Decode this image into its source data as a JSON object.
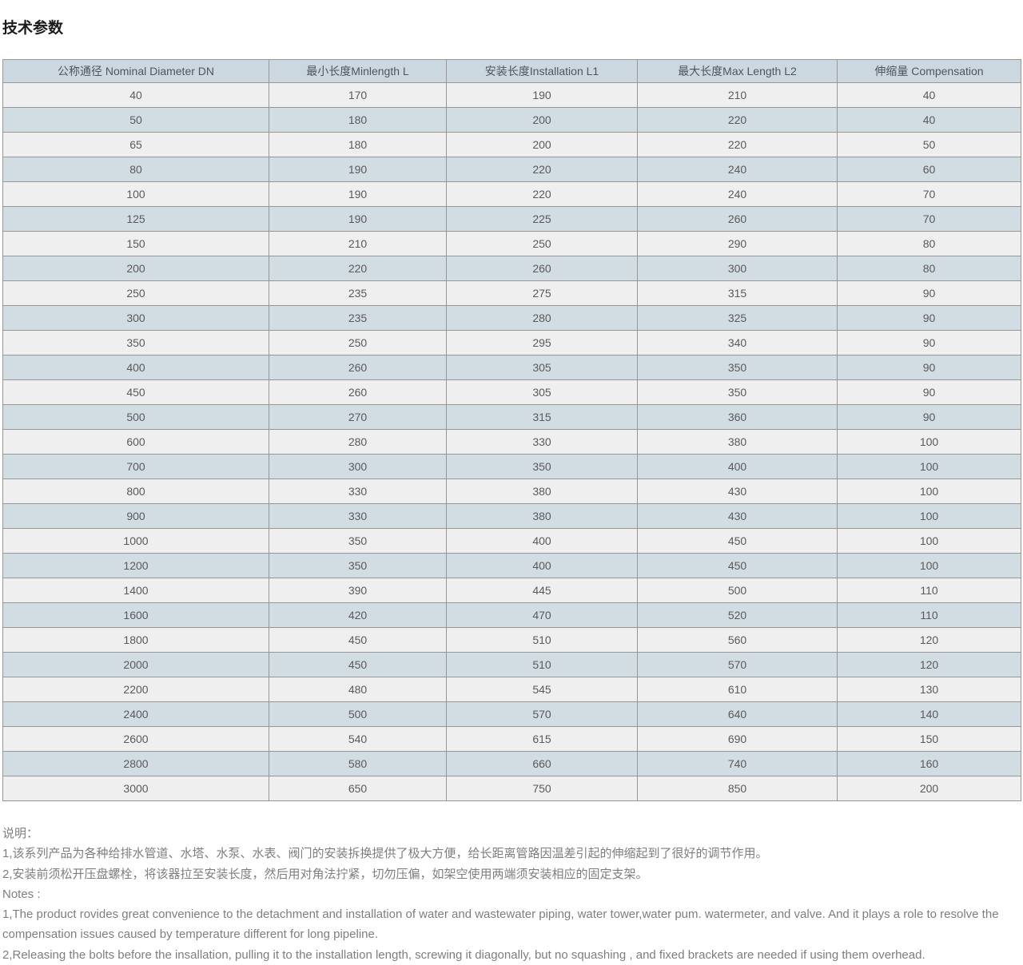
{
  "page": {
    "title": "技术参数"
  },
  "table": {
    "headers": [
      "公称通径 Nominal Diameter DN",
      "最小长度Minlength L",
      "安装长度Installation L1",
      "最大长度Max Length L2",
      "伸缩量 Compensation"
    ],
    "rows": [
      [
        "40",
        "170",
        "190",
        "210",
        "40"
      ],
      [
        "50",
        "180",
        "200",
        "220",
        "40"
      ],
      [
        "65",
        "180",
        "200",
        "220",
        "50"
      ],
      [
        "80",
        "190",
        "220",
        "240",
        "60"
      ],
      [
        "100",
        "190",
        "220",
        "240",
        "70"
      ],
      [
        "125",
        "190",
        "225",
        "260",
        "70"
      ],
      [
        "150",
        "210",
        "250",
        "290",
        "80"
      ],
      [
        "200",
        "220",
        "260",
        "300",
        "80"
      ],
      [
        "250",
        "235",
        "275",
        "315",
        "90"
      ],
      [
        "300",
        "235",
        "280",
        "325",
        "90"
      ],
      [
        "350",
        "250",
        "295",
        "340",
        "90"
      ],
      [
        "400",
        "260",
        "305",
        "350",
        "90"
      ],
      [
        "450",
        "260",
        "305",
        "350",
        "90"
      ],
      [
        "500",
        "270",
        "315",
        "360",
        "90"
      ],
      [
        "600",
        "280",
        "330",
        "380",
        "100"
      ],
      [
        "700",
        "300",
        "350",
        "400",
        "100"
      ],
      [
        "800",
        "330",
        "380",
        "430",
        "100"
      ],
      [
        "900",
        "330",
        "380",
        "430",
        "100"
      ],
      [
        "1000",
        "350",
        "400",
        "450",
        "100"
      ],
      [
        "1200",
        "350",
        "400",
        "450",
        "100"
      ],
      [
        "1400",
        "390",
        "445",
        "500",
        "110"
      ],
      [
        "1600",
        "420",
        "470",
        "520",
        "110"
      ],
      [
        "1800",
        "450",
        "510",
        "560",
        "120"
      ],
      [
        "2000",
        "450",
        "510",
        "570",
        "120"
      ],
      [
        "2200",
        "480",
        "545",
        "610",
        "130"
      ],
      [
        "2400",
        "500",
        "570",
        "640",
        "140"
      ],
      [
        "2600",
        "540",
        "615",
        "690",
        "150"
      ],
      [
        "2800",
        "580",
        "660",
        "740",
        "160"
      ],
      [
        "3000",
        "650",
        "750",
        "850",
        "200"
      ]
    ]
  },
  "notes_cn": {
    "heading": "说明：",
    "items": [
      "1,该系列产品为各种给排水管道、水塔、水泵、水表、阀门的安装拆换提供了极大方便，给长距离管路因温差引起的伸缩起到了很好的调节作用。",
      "2,安装前须松开压盘螺栓，将该器拉至安装长度，然后用对角法拧紧，切勿压偏，如架空使用两端须安装相应的固定支架。"
    ]
  },
  "notes_en": {
    "heading": "Notes :",
    "items": [
      "1,The product rovides great convenience to the detachment and installation of water and wastewater piping, water tower,water pum. watermeter, and valve. And it plays a role to resolve the compensation issues caused by temperature different for long pipeline.",
      "2,Releasing the bolts before the insallation, pulling it to the installation length, screwing it diagonally, but no squashing , and fixed brackets are needed if using them overhead."
    ]
  },
  "colors": {
    "header_bg": "#ccd8e0",
    "row_light_bg": "#efefef",
    "row_blue_bg": "#d2dce3",
    "border": "#979797",
    "cell_text": "#5a5a5a",
    "notes_text": "#7e7e7e",
    "title_text": "#1c1c1c"
  }
}
